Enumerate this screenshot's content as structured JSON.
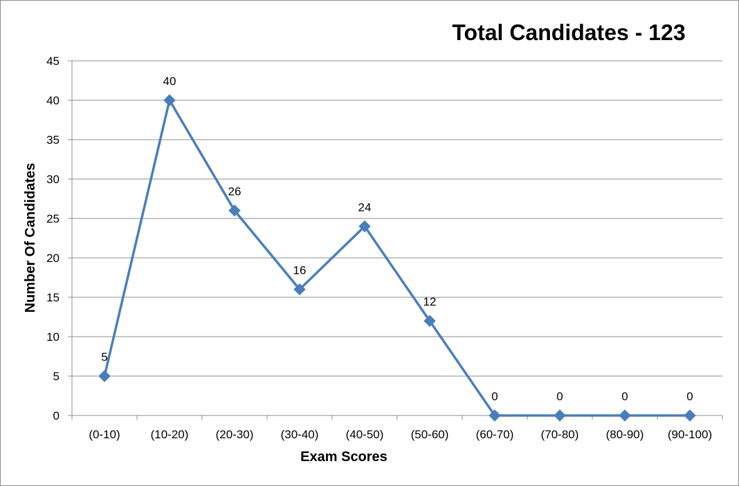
{
  "chart_data": {
    "type": "line",
    "title": "Total Candidates - 123",
    "xlabel": "Exam Scores",
    "ylabel": "Number Of Candidates",
    "categories": [
      "(0-10)",
      "(10-20)",
      "(20-30)",
      "(30-40)",
      "(40-50)",
      "(50-60)",
      "(60-70)",
      "(70-80)",
      "(80-90)",
      "(90-100)"
    ],
    "series": [
      {
        "values": [
          5,
          40,
          26,
          16,
          24,
          12,
          0,
          0,
          0,
          0
        ]
      }
    ],
    "ylim": [
      0,
      45
    ],
    "yticks": [
      0,
      5,
      10,
      15,
      20,
      25,
      30,
      35,
      40,
      45
    ],
    "grid": true,
    "marker": "diamond",
    "line_color": "#4a7ebb",
    "marker_color": "#4a7ebb",
    "data_labels": true
  }
}
